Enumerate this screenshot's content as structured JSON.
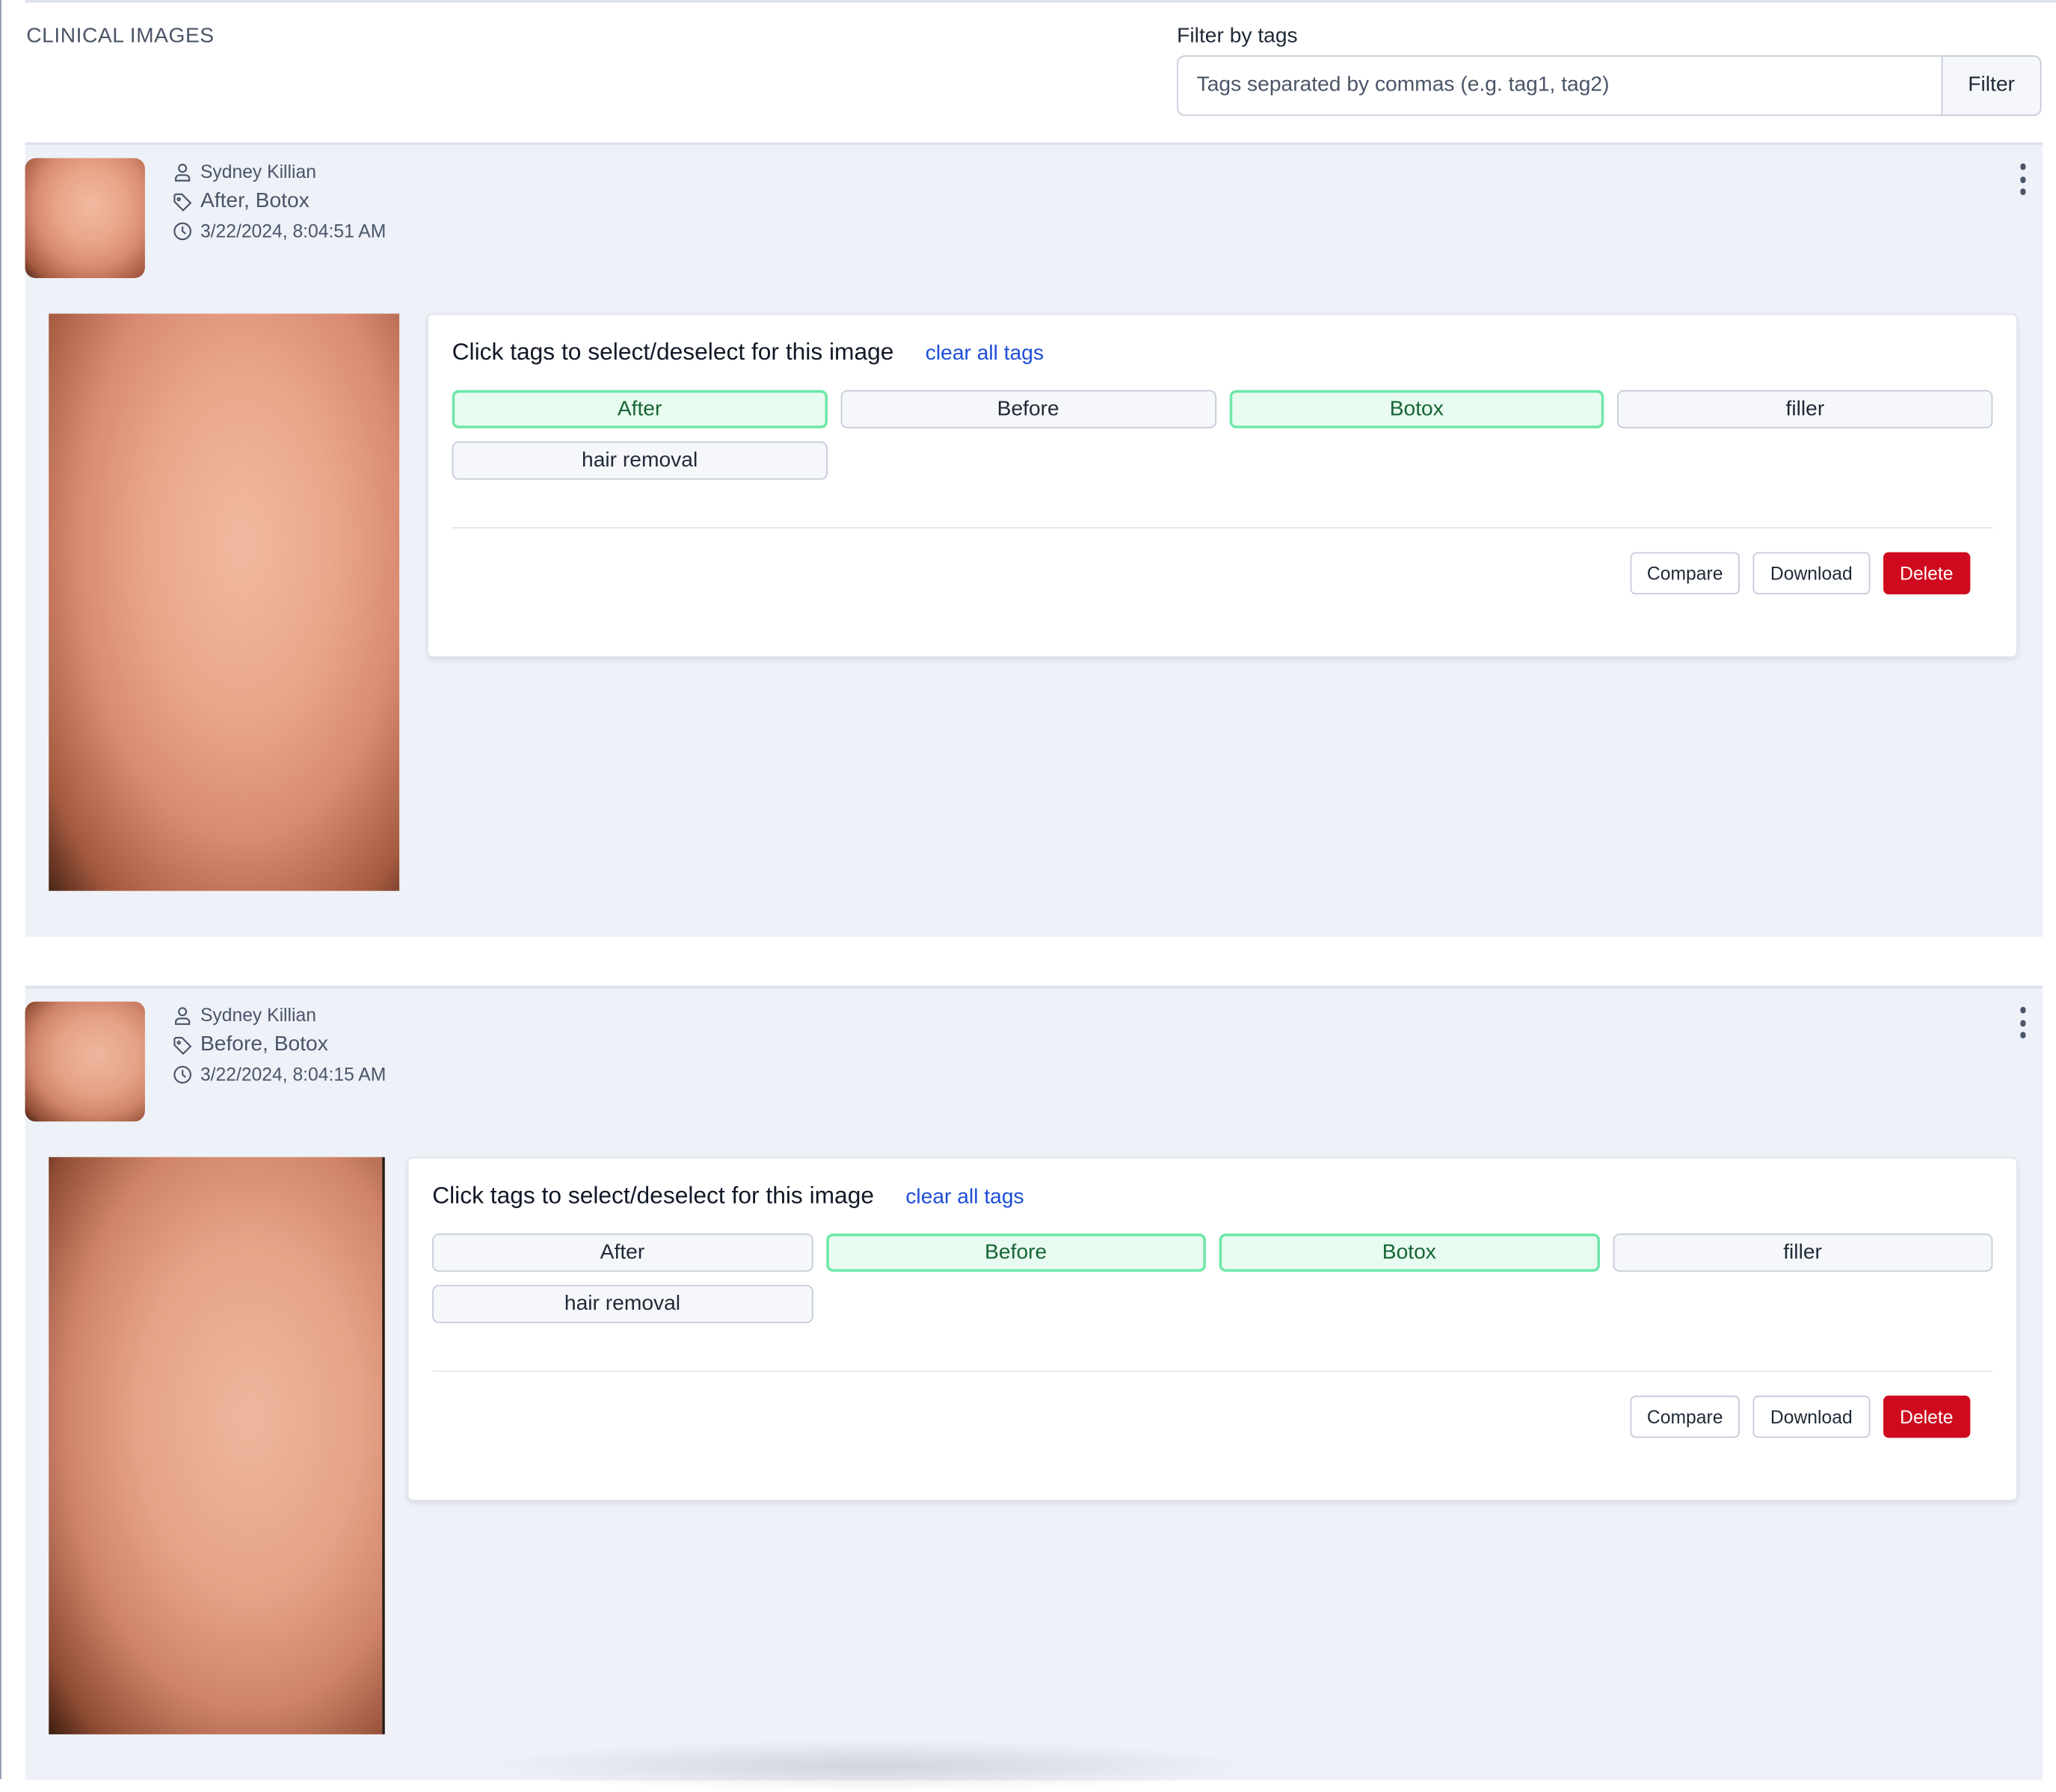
{
  "page": {
    "title": "CLINICAL IMAGES"
  },
  "filter": {
    "label": "Filter by tags",
    "placeholder": "Tags separated by commas (e.g. tag1, tag2)",
    "value": "",
    "button": "Filter"
  },
  "colors": {
    "selected_tag_bg": "#e8fbf0",
    "selected_tag_border": "#6ee7a8",
    "delete": "#cf0a1e",
    "link": "#1d4ed8",
    "card_bg": "#eef1f8"
  },
  "images": [
    {
      "patient": "Sydney Killian",
      "tags_summary": "After, Botox",
      "timestamp": "3/22/2024, 8:04:51 AM",
      "panel_title": "Click tags to select/deselect for this image",
      "clear_label": "clear all tags",
      "tags": [
        {
          "label": "After",
          "selected": true
        },
        {
          "label": "Before",
          "selected": false
        },
        {
          "label": "Botox",
          "selected": true
        },
        {
          "label": "filler",
          "selected": false
        },
        {
          "label": "hair removal",
          "selected": false
        }
      ],
      "actions": {
        "compare": "Compare",
        "download": "Download",
        "delete": "Delete"
      }
    },
    {
      "patient": "Sydney Killian",
      "tags_summary": "Before, Botox",
      "timestamp": "3/22/2024, 8:04:15 AM",
      "panel_title": "Click tags to select/deselect for this image",
      "clear_label": "clear all tags",
      "tags": [
        {
          "label": "After",
          "selected": false
        },
        {
          "label": "Before",
          "selected": true
        },
        {
          "label": "Botox",
          "selected": true
        },
        {
          "label": "filler",
          "selected": false
        },
        {
          "label": "hair removal",
          "selected": false
        }
      ],
      "actions": {
        "compare": "Compare",
        "download": "Download",
        "delete": "Delete"
      }
    }
  ],
  "icons": {
    "user": "user-icon",
    "tag": "tag-icon",
    "clock": "clock-icon",
    "menu": "kebab-menu-icon"
  }
}
